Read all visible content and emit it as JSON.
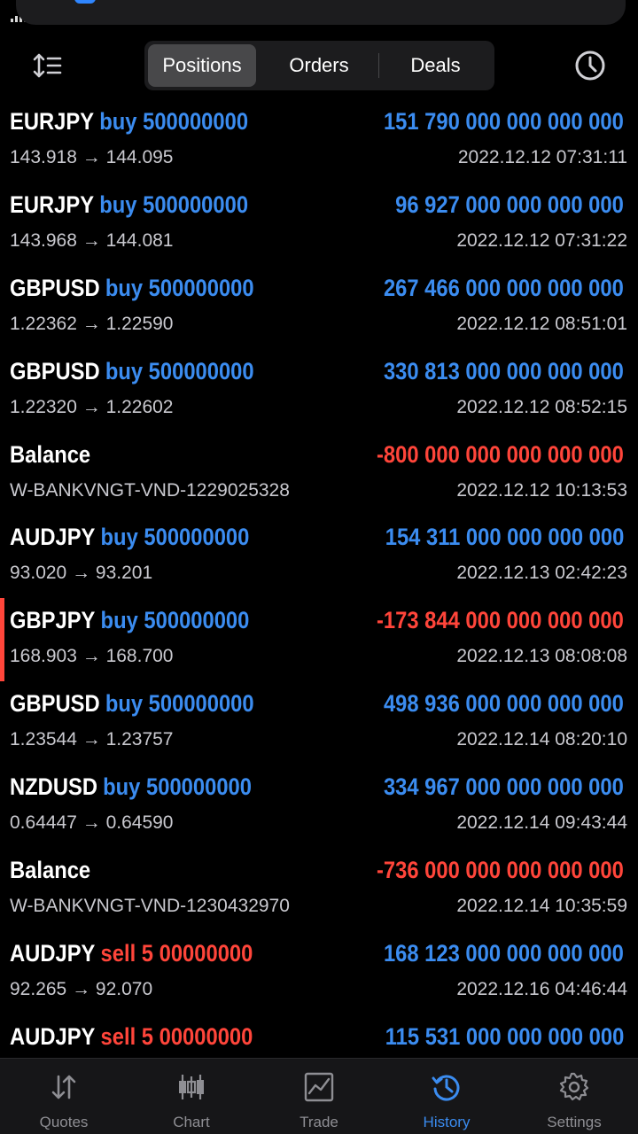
{
  "header": {
    "tabs": [
      {
        "label": "Positions",
        "active": true
      },
      {
        "label": "Orders",
        "active": false
      },
      {
        "label": "Deals",
        "active": false
      }
    ],
    "left_icon": "sort-icon",
    "right_icon": "history-clock-icon"
  },
  "rows": [
    {
      "symbol": "EURJPY",
      "side": "buy",
      "volume": "500000000",
      "prices": "143.918 → 144.095",
      "profit": "151 790 000 000 000 000",
      "date": "2022.12.12 07:31:11"
    },
    {
      "symbol": "EURJPY",
      "side": "buy",
      "volume": "500000000",
      "prices": "143.968 → 144.081",
      "profit": "96 927 000 000 000 000",
      "date": "2022.12.12 07:31:22"
    },
    {
      "symbol": "GBPUSD",
      "side": "buy",
      "volume": "500000000",
      "prices": "1.22362 → 1.22590",
      "profit": "267 466 000 000 000 000",
      "date": "2022.12.12 08:51:01"
    },
    {
      "symbol": "GBPUSD",
      "side": "buy",
      "volume": "500000000",
      "prices": "1.22320 → 1.22602",
      "profit": "330 813 000 000 000 000",
      "date": "2022.12.12 08:52:15"
    },
    {
      "balance": "Balance",
      "comment": "W-BANKVNGT-VND-1229025328",
      "profit": "-800 000 000 000 000 000",
      "date": "2022.12.12 10:13:53"
    },
    {
      "symbol": "AUDJPY",
      "side": "buy",
      "volume": "500000000",
      "prices": "93.020 → 93.201",
      "profit": "154 311 000 000 000 000",
      "date": "2022.12.13 02:42:23"
    },
    {
      "symbol": "GBPJPY",
      "side": "buy",
      "volume": "500000000",
      "prices": "168.903 → 168.700",
      "profit": "-173 844 000 000 000 000",
      "date": "2022.12.13 08:08:08",
      "marked": true
    },
    {
      "symbol": "GBPUSD",
      "side": "buy",
      "volume": "500000000",
      "prices": "1.23544 → 1.23757",
      "profit": "498 936 000 000 000 000",
      "date": "2022.12.14 08:20:10"
    },
    {
      "symbol": "NZDUSD",
      "side": "buy",
      "volume": "500000000",
      "prices": "0.64447 → 0.64590",
      "profit": "334 967 000 000 000 000",
      "date": "2022.12.14 09:43:44"
    },
    {
      "balance": "Balance",
      "comment": "W-BANKVNGT-VND-1230432970",
      "profit": "-736 000 000 000 000 000",
      "date": "2022.12.14 10:35:59"
    },
    {
      "symbol": "AUDJPY",
      "side": "sell",
      "volume": "5 00000000",
      "prices": "92.265 → 92.070",
      "profit": "168 123 000 000 000 000",
      "date": "2022.12.16 04:46:44"
    },
    {
      "symbol": "AUDJPY",
      "side": "sell",
      "volume": "5 00000000",
      "prices": "",
      "profit": "115 531 000 000 000 000",
      "date": ""
    }
  ],
  "tabbar": [
    {
      "label": "Quotes",
      "icon": "quotes-arrows-icon",
      "active": false
    },
    {
      "label": "Chart",
      "icon": "candlestick-chart-icon",
      "active": false
    },
    {
      "label": "Trade",
      "icon": "trade-chart-icon",
      "active": false
    },
    {
      "label": "History",
      "icon": "history-icon",
      "active": true
    },
    {
      "label": "Settings",
      "icon": "gear-icon",
      "active": false
    }
  ],
  "colors": {
    "positive": "#3b8cf0",
    "negative": "#ff453a",
    "background": "#000000"
  }
}
